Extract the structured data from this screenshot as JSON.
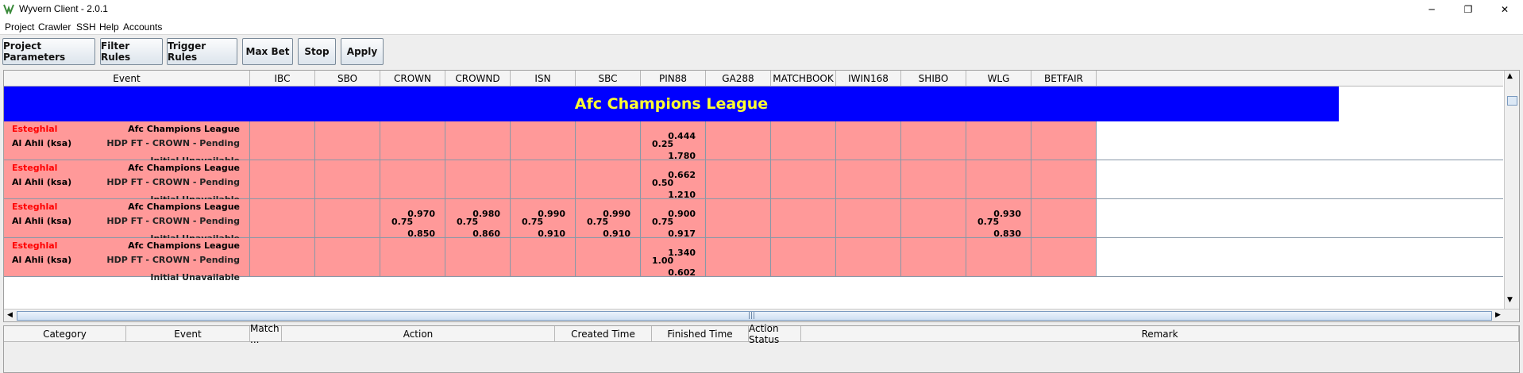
{
  "window": {
    "title": "Wyvern Client - 2.0.1",
    "icon": "wyvern-logo-icon",
    "min_glyph": "─",
    "max_glyph": "❐",
    "close_glyph": "✕"
  },
  "menu": [
    "Project",
    "Crawler",
    "SSH",
    "Help",
    "Accounts"
  ],
  "toolbar": [
    "Project Parameters",
    "Filter Rules",
    "Trigger Rules",
    "Max Bet",
    "Stop",
    "Apply"
  ],
  "grid": {
    "columns": [
      "Event",
      "IBC",
      "SBO",
      "CROWN",
      "CROWND",
      "ISN",
      "SBC",
      "PIN88",
      "GA288",
      "MATCHBOOK",
      "IWIN168",
      "SHIBO",
      "WLG",
      "BETFAIR"
    ],
    "league_banner": "Afc Champions League",
    "rows": [
      {
        "home": "Esteghlal",
        "away": "Al Ahli (ksa)",
        "league": "Afc Champions League",
        "status": "HDP FT - CROWN - Pending",
        "note": "Initial Unavailable",
        "odds": {
          "PIN88": {
            "line": "0.25",
            "home": "0.444",
            "away": "1.780"
          }
        }
      },
      {
        "home": "Esteghlal",
        "away": "Al Ahli (ksa)",
        "league": "Afc Champions League",
        "status": "HDP FT - CROWN - Pending",
        "note": "Initial Unavailable",
        "odds": {
          "PIN88": {
            "line": "0.50",
            "home": "0.662",
            "away": "1.210"
          }
        }
      },
      {
        "home": "Esteghlal",
        "away": "Al Ahli (ksa)",
        "league": "Afc Champions League",
        "status": "HDP FT - CROWN - Pending",
        "note": "Initial Unavailable",
        "odds": {
          "CROWN": {
            "line": "0.75",
            "home": "0.970",
            "away": "0.850"
          },
          "CROWND": {
            "line": "0.75",
            "home": "0.980",
            "away": "0.860"
          },
          "ISN": {
            "line": "0.75",
            "home": "0.990",
            "away": "0.910"
          },
          "SBC": {
            "line": "0.75",
            "home": "0.990",
            "away": "0.910"
          },
          "PIN88": {
            "line": "0.75",
            "home": "0.900",
            "away": "0.917"
          },
          "WLG": {
            "line": "0.75",
            "home": "0.930",
            "away": "0.830"
          }
        }
      },
      {
        "home": "Esteghlal",
        "away": "Al Ahli (ksa)",
        "league": "Afc Champions League",
        "status": "HDP FT - CROWN - Pending",
        "note": "Initial Unavailable",
        "odds": {
          "PIN88": {
            "line": "1.00",
            "home": "1.340",
            "away": "0.602"
          }
        }
      }
    ],
    "colors": {
      "banner_bg": "#0000ff",
      "banner_text": "#ffff33",
      "row_bg": "#ff9999",
      "home_team": "#ff0000"
    }
  },
  "scroll": {
    "up": "▲",
    "down": "▼",
    "left": "◀",
    "right": "▶",
    "grip": "|||"
  },
  "log": {
    "columns": [
      "Category",
      "Event",
      "Match ...",
      "Action",
      "Created Time",
      "Finished Time",
      "Action Status",
      "Remark"
    ]
  }
}
